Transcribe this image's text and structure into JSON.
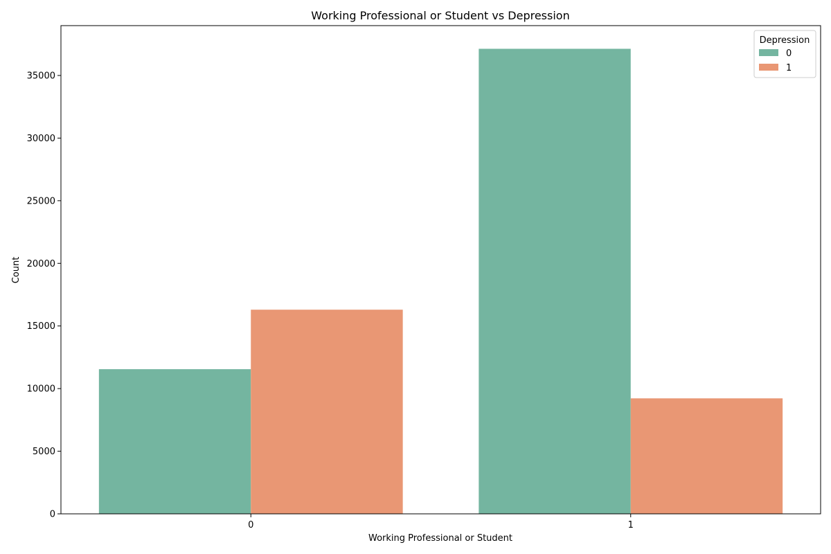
{
  "chart_data": {
    "type": "bar",
    "title": "Working Professional or Student vs Depression",
    "xlabel": "Working Professional or Student",
    "ylabel": "Count",
    "categories": [
      "0",
      "1"
    ],
    "series": [
      {
        "name": "0",
        "values": [
          11550,
          37130
        ],
        "color": "#74b5a0"
      },
      {
        "name": "1",
        "values": [
          16300,
          9220
        ],
        "color": "#e99774"
      }
    ],
    "ylim": [
      0,
      38980
    ],
    "yticks": [
      0,
      5000,
      10000,
      15000,
      20000,
      25000,
      30000,
      35000
    ],
    "ytick_labels": [
      "0",
      "5000",
      "10000",
      "15000",
      "20000",
      "25000",
      "30000",
      "35000"
    ],
    "grid": false,
    "legend": {
      "title": "Depression",
      "placement": "top-right"
    }
  }
}
